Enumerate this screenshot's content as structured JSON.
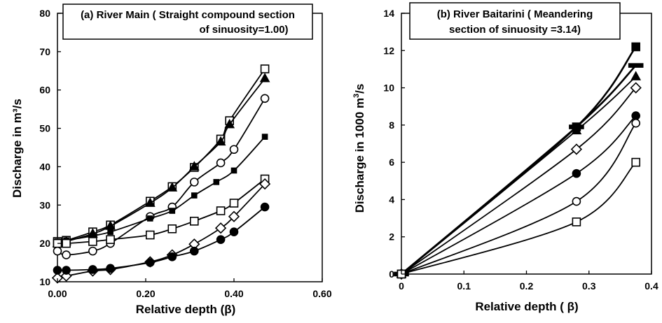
{
  "chart_data": [
    {
      "type": "line",
      "title_line1": "(a) River Main ( Straight compound section",
      "title_line2": "of sinuosity=1.00)",
      "xlabel": "Relative depth (β)",
      "ylabel": "Discharge in m³/s",
      "xlim": [
        0,
        0.6
      ],
      "ylim": [
        10,
        80
      ],
      "xticks": [
        "0.00",
        "0.20",
        "0.40",
        "0.60"
      ],
      "yticks": [
        "10",
        "20",
        "30",
        "40",
        "50",
        "60",
        "70",
        "80"
      ],
      "grid": false,
      "series": [
        {
          "marker": "open-square",
          "x": [
            0.0,
            0.02,
            0.08,
            0.12,
            0.21,
            0.26,
            0.31,
            0.37,
            0.39,
            0.47
          ],
          "y": [
            20.5,
            20.8,
            23.0,
            24.8,
            31.0,
            34.8,
            39.8,
            47.2,
            52.0,
            65.5
          ]
        },
        {
          "marker": "filled-triangle",
          "x": [
            0.0,
            0.02,
            0.08,
            0.12,
            0.21,
            0.26,
            0.31,
            0.37,
            0.39,
            0.47
          ],
          "y": [
            20.0,
            20.5,
            22.5,
            24.5,
            30.5,
            34.5,
            40.0,
            46.5,
            51.0,
            63.0
          ]
        },
        {
          "marker": "open-circle",
          "x": [
            0.0,
            0.02,
            0.08,
            0.12,
            0.21,
            0.26,
            0.31,
            0.37,
            0.4,
            0.47
          ],
          "y": [
            18.0,
            17.0,
            18.0,
            20.0,
            27.0,
            29.5,
            36.0,
            41.0,
            44.5,
            57.8
          ]
        },
        {
          "marker": "small-filled-square",
          "x": [
            0.0,
            0.02,
            0.08,
            0.12,
            0.21,
            0.26,
            0.31,
            0.36,
            0.4,
            0.47
          ],
          "y": [
            20.5,
            20.8,
            22.0,
            23.0,
            26.5,
            28.5,
            32.5,
            36.0,
            39.0,
            47.8
          ]
        },
        {
          "marker": "open-square",
          "x": [
            0.0,
            0.02,
            0.08,
            0.12,
            0.21,
            0.26,
            0.31,
            0.37,
            0.4,
            0.47
          ],
          "y": [
            20.0,
            20.0,
            20.5,
            21.0,
            22.2,
            23.8,
            25.8,
            28.5,
            30.5,
            36.8
          ]
        },
        {
          "marker": "open-diamond",
          "x": [
            0.0,
            0.02,
            0.08,
            0.12,
            0.21,
            0.26,
            0.31,
            0.37,
            0.4,
            0.47
          ],
          "y": [
            11.0,
            11.5,
            12.8,
            13.2,
            15.2,
            17.0,
            19.8,
            24.0,
            27.0,
            35.5
          ]
        },
        {
          "marker": "filled-circle",
          "x": [
            0.0,
            0.02,
            0.08,
            0.12,
            0.21,
            0.26,
            0.31,
            0.37,
            0.4,
            0.47
          ],
          "y": [
            13.0,
            13.0,
            13.2,
            13.5,
            15.0,
            16.5,
            18.0,
            21.0,
            23.0,
            29.5
          ]
        }
      ]
    },
    {
      "type": "line",
      "title_line1": "(b) River Baitarini ( Meandering",
      "title_line2": "section of sinuosity =3.14)",
      "xlabel": "Relative depth ( β)",
      "ylabel_prefix": "Discharge in 1000 m",
      "ylabel_sup": "3",
      "ylabel_suffix": "/s",
      "xlim": [
        0,
        0.4
      ],
      "ylim": [
        0,
        14
      ],
      "xticks": [
        "0",
        "0.1",
        "0.2",
        "0.3",
        "0.4"
      ],
      "yticks": [
        "0",
        "2",
        "4",
        "6",
        "8",
        "10",
        "12",
        "14"
      ],
      "grid": false,
      "series": [
        {
          "marker": "filled-square",
          "x": [
            0,
            0.28,
            0.375
          ],
          "y": [
            0,
            7.9,
            12.2
          ]
        },
        {
          "marker": "dash",
          "x": [
            0,
            0.28,
            0.375
          ],
          "y": [
            0,
            7.9,
            11.2
          ]
        },
        {
          "marker": "filled-triangle",
          "x": [
            0,
            0.28,
            0.375
          ],
          "y": [
            0,
            7.7,
            10.6
          ]
        },
        {
          "marker": "open-diamond",
          "x": [
            0,
            0.28,
            0.375
          ],
          "y": [
            0,
            6.7,
            10.0
          ]
        },
        {
          "marker": "filled-circle",
          "x": [
            0,
            0.28,
            0.375
          ],
          "y": [
            0,
            5.4,
            8.5
          ]
        },
        {
          "marker": "open-circle",
          "x": [
            0,
            0.28,
            0.375
          ],
          "y": [
            0,
            3.9,
            8.1
          ]
        },
        {
          "marker": "open-square",
          "x": [
            0,
            0.28,
            0.375
          ],
          "y": [
            0,
            2.8,
            6.0
          ]
        }
      ]
    }
  ]
}
